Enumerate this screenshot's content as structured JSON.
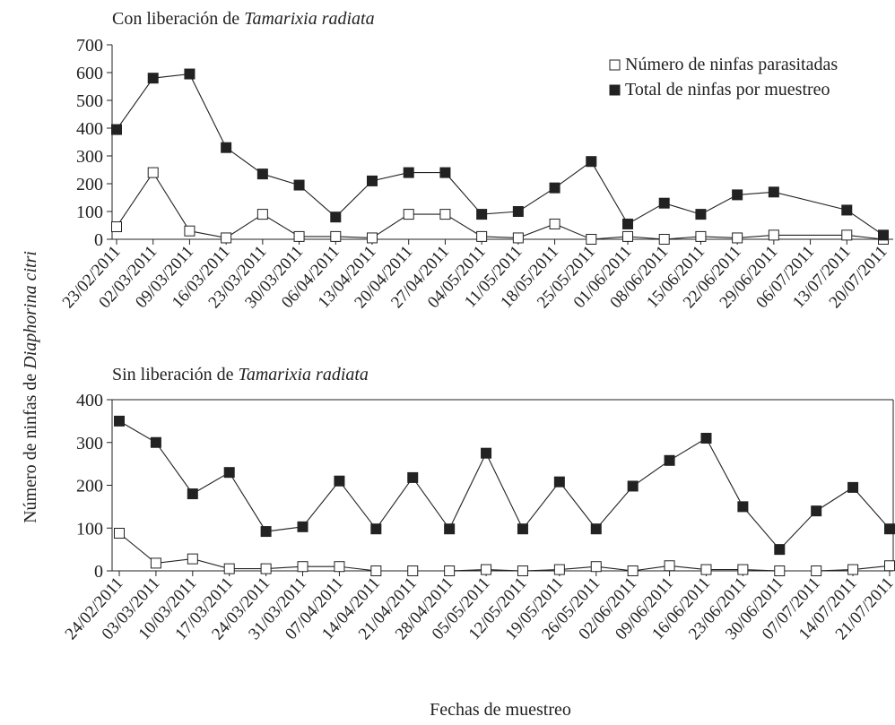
{
  "figure": {
    "ylabel_prefix": "Número de ninfas de ",
    "ylabel_italic": "Diaphorina citri",
    "xlabel": "Fechas de muestreo"
  },
  "chart_data": [
    {
      "type": "line",
      "title_prefix": "Con liberación de ",
      "title_italic": "Tamarixia radiata",
      "ylim": [
        0,
        700
      ],
      "yticks": [
        0,
        100,
        200,
        300,
        400,
        500,
        600,
        700
      ],
      "categories": [
        "23/02/2011",
        "02/03/2011",
        "09/03/2011",
        "16/03/2011",
        "23/03/2011",
        "30/03/2011",
        "06/04/2011",
        "13/04/2011",
        "20/04/2011",
        "27/04/2011",
        "04/05/2011",
        "11/05/2011",
        "18/05/2011",
        "25/05/2011",
        "01/06/2011",
        "08/06/2011",
        "15/06/2011",
        "22/06/2011",
        "29/06/2011",
        "06/07/2011",
        "13/07/2011",
        "20/07/2011"
      ],
      "legend": {
        "position": "top-right",
        "entries": [
          "Número de ninfas parasitadas",
          "Total de ninfas por muestreo"
        ]
      },
      "series": [
        {
          "name": "Número de ninfas parasitadas",
          "marker": "open-square",
          "values": [
            45,
            240,
            30,
            5,
            90,
            10,
            10,
            5,
            90,
            90,
            10,
            5,
            55,
            0,
            10,
            0,
            10,
            5,
            15,
            null,
            15,
            0
          ]
        },
        {
          "name": "Total de ninfas por muestreo",
          "marker": "filled-square",
          "values": [
            395,
            580,
            595,
            330,
            235,
            195,
            80,
            210,
            240,
            240,
            90,
            100,
            185,
            280,
            55,
            130,
            90,
            160,
            170,
            null,
            105,
            15
          ]
        }
      ]
    },
    {
      "type": "line",
      "title_prefix": "Sin liberación de ",
      "title_italic": "Tamarixia radiata",
      "ylim": [
        0,
        400
      ],
      "yticks": [
        0,
        100,
        200,
        300,
        400
      ],
      "categories": [
        "24/02/2011",
        "03/03/2011",
        "10/03/2011",
        "17/03/2011",
        "24/03/2011",
        "31/03/2011",
        "07/04/2011",
        "14/04/2011",
        "21/04/2011",
        "28/04/2011",
        "05/05/2011",
        "12/05/2011",
        "19/05/2011",
        "26/05/2011",
        "02/06/2011",
        "09/06/2011",
        "16/06/2011",
        "23/06/2011",
        "30/06/2011",
        "07/07/2011",
        "14/07/2011",
        "21/07/2011"
      ],
      "series": [
        {
          "name": "Número de ninfas parasitadas",
          "marker": "open-square",
          "values": [
            88,
            18,
            28,
            5,
            5,
            10,
            10,
            0,
            0,
            0,
            3,
            0,
            3,
            10,
            0,
            12,
            3,
            3,
            0,
            0,
            3,
            12
          ]
        },
        {
          "name": "Total de ninfas por muestreo",
          "marker": "filled-square",
          "values": [
            350,
            300,
            180,
            230,
            92,
            103,
            210,
            98,
            218,
            98,
            275,
            98,
            208,
            98,
            198,
            258,
            310,
            150,
            50,
            140,
            195,
            98
          ]
        }
      ]
    }
  ]
}
